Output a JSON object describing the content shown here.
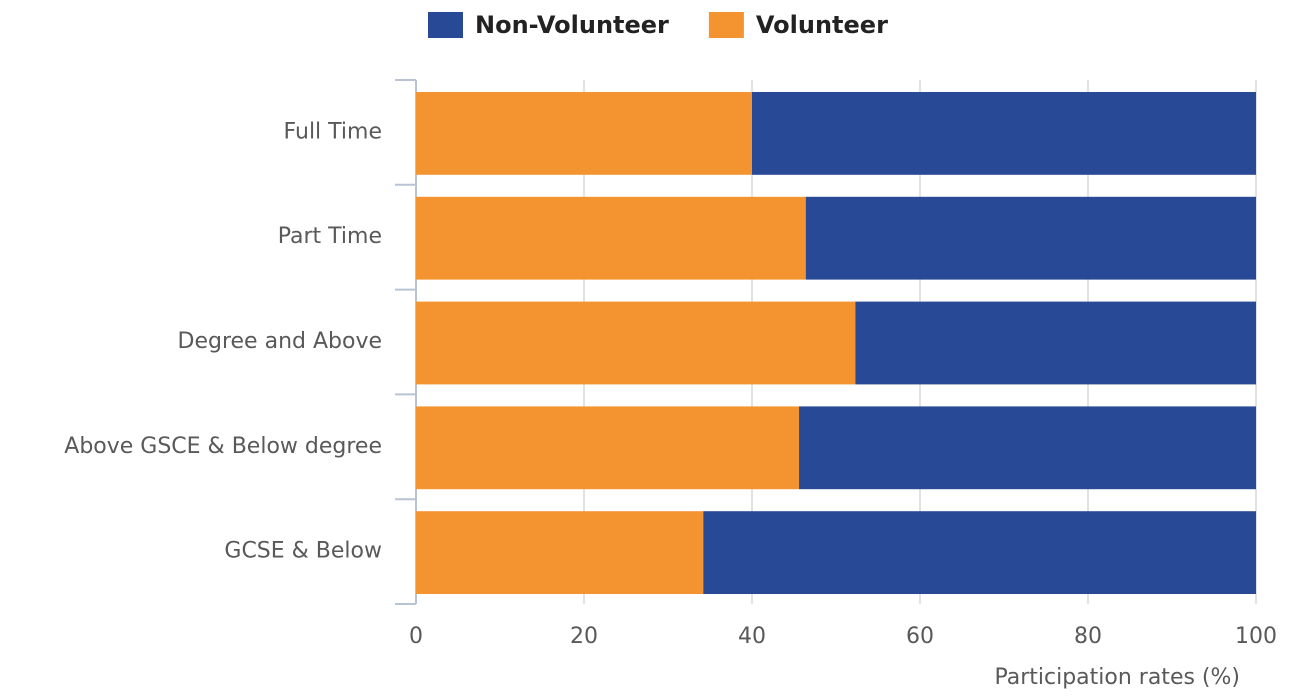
{
  "chart_data": {
    "type": "stacked-barh",
    "categories": [
      "Full Time",
      "Part Time",
      "Degree and Above",
      "Above GSCE & Below degree",
      "GCSE & Below"
    ],
    "series": [
      {
        "name": "Non-Volunteer",
        "color": "#284996",
        "values": [
          60,
          53.6,
          47.7,
          54.4,
          65.8
        ]
      },
      {
        "name": "Volunteer",
        "color": "#f39431",
        "values": [
          40,
          46.4,
          52.3,
          45.6,
          34.2
        ]
      }
    ],
    "xlabel": "Participation rates (%)",
    "xlim": [
      0,
      100
    ],
    "xticks": [
      0,
      20,
      40,
      60,
      80,
      100
    ],
    "grid": true
  }
}
